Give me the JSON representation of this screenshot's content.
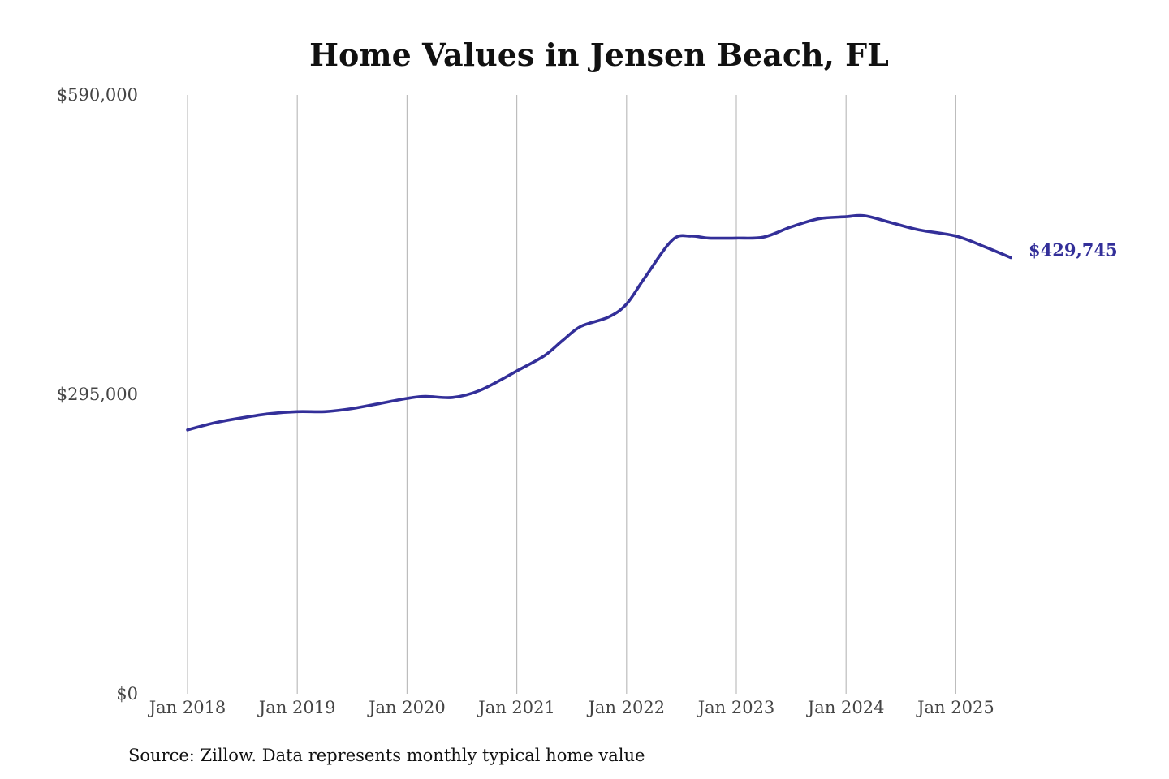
{
  "chart_data": {
    "type": "line",
    "title": "Home Values in Jensen Beach, FL",
    "xlabel": "",
    "ylabel": "",
    "x_tick_labels": [
      "Jan 2018",
      "Jan 2019",
      "Jan 2020",
      "Jan 2021",
      "Jan 2022",
      "Jan 2023",
      "Jan 2024",
      "Jan 2025"
    ],
    "y_tick_labels": [
      "$0",
      "$295,000",
      "$590,000"
    ],
    "y_ticks": [
      0,
      295000,
      590000
    ],
    "ylim": [
      0,
      590000
    ],
    "xlim": [
      "2018-01",
      "2025-07"
    ],
    "grid": "vertical",
    "series": [
      {
        "color": "#332f99",
        "end_label": "$429,745",
        "x": [
          "2018-01",
          "2018-04",
          "2018-07",
          "2018-10",
          "2019-01",
          "2019-04",
          "2019-07",
          "2019-10",
          "2020-01",
          "2020-03",
          "2020-06",
          "2020-09",
          "2021-01",
          "2021-04",
          "2021-06",
          "2021-08",
          "2021-11",
          "2022-01",
          "2022-03",
          "2022-06",
          "2022-08",
          "2022-10",
          "2023-01",
          "2023-04",
          "2023-07",
          "2023-10",
          "2024-01",
          "2024-03",
          "2024-06",
          "2024-09",
          "2025-01",
          "2025-04",
          "2025-07"
        ],
        "values": [
          260000,
          267000,
          272000,
          276000,
          278000,
          278000,
          281000,
          286000,
          291000,
          293000,
          292000,
          299000,
          318000,
          333000,
          348000,
          362000,
          371000,
          384000,
          410000,
          447000,
          451000,
          449000,
          449000,
          450000,
          460000,
          468000,
          470000,
          471000,
          464000,
          457000,
          451000,
          441000,
          429745
        ]
      }
    ]
  },
  "source_note": "Source: Zillow. Data represents monthly typical home value"
}
